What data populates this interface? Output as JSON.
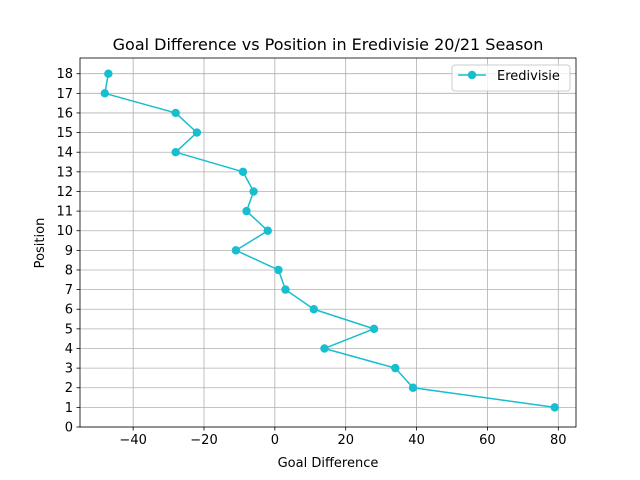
{
  "chart_data": {
    "type": "line",
    "title": "Goal Difference vs Position in Eredivisie 20/21 Season",
    "xlabel": "Goal Difference",
    "ylabel": "Position",
    "xlim": [
      -55,
      85
    ],
    "ylim": [
      0,
      18.8
    ],
    "xticks": [
      -40,
      -20,
      0,
      20,
      40,
      60,
      80
    ],
    "xtick_labels": [
      "−40",
      "−20",
      "0",
      "20",
      "40",
      "60",
      "80"
    ],
    "yticks": [
      0,
      1,
      2,
      3,
      4,
      5,
      6,
      7,
      8,
      9,
      10,
      11,
      12,
      13,
      14,
      15,
      16,
      17,
      18
    ],
    "ytick_labels": [
      "0",
      "1",
      "2",
      "3",
      "4",
      "5",
      "6",
      "7",
      "8",
      "9",
      "10",
      "11",
      "12",
      "13",
      "14",
      "15",
      "16",
      "17",
      "18"
    ],
    "grid": true,
    "legend_position": "top-right",
    "series": [
      {
        "name": "Eredivisie",
        "color": "#17becf",
        "marker": "circle",
        "points": [
          {
            "x": 79,
            "y": 1
          },
          {
            "x": 39,
            "y": 2
          },
          {
            "x": 34,
            "y": 3
          },
          {
            "x": 14,
            "y": 4
          },
          {
            "x": 28,
            "y": 5
          },
          {
            "x": 11,
            "y": 6
          },
          {
            "x": 3,
            "y": 7
          },
          {
            "x": 1,
            "y": 8
          },
          {
            "x": -11,
            "y": 9
          },
          {
            "x": -2,
            "y": 10
          },
          {
            "x": -8,
            "y": 11
          },
          {
            "x": -6,
            "y": 12
          },
          {
            "x": -9,
            "y": 13
          },
          {
            "x": -28,
            "y": 14
          },
          {
            "x": -22,
            "y": 15
          },
          {
            "x": -28,
            "y": 16
          },
          {
            "x": -48,
            "y": 17
          },
          {
            "x": -47,
            "y": 18
          }
        ]
      }
    ]
  }
}
